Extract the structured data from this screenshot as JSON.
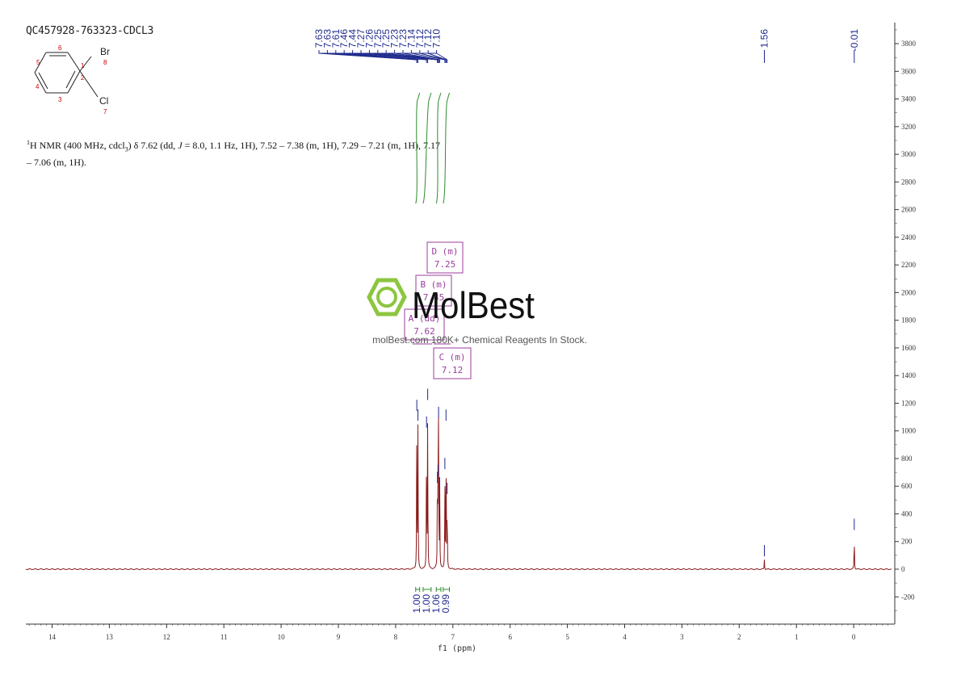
{
  "sample_id": "QC457928-763323-CDCL3",
  "molecule": {
    "substituent_top": "Br",
    "substituent_bottom": "Cl",
    "atom_numbers": [
      "1",
      "2",
      "3",
      "4",
      "5",
      "6",
      "7",
      "8"
    ]
  },
  "nmr_text": {
    "sup": "1",
    "p1": "H NMR (400 MHz, cdcl",
    "sub": "3",
    "p2": ") δ 7.62 (dd, ",
    "j": "J",
    "p3": " = 8.0, 1.1 Hz, 1H), 7.52 – 7.38 (m, 1H), 7.29 – 7.21 (m, 1H), 7.17",
    "line2": "– 7.06 (m, 1H)."
  },
  "watermark": {
    "brand": "MolBest",
    "tagline": "molBest.com  180K+ Chemical Reagents In Stock."
  },
  "colors": {
    "spectrum": "#8b1a1a",
    "peak_label": "#1f2a8c",
    "integral": "#2e8b2e",
    "multiplet": "#9b3d9b",
    "axis": "#333333",
    "atom_number": "#cc0000",
    "watermark_green": "#8cc63f"
  },
  "chart_data": {
    "type": "line",
    "xlabel": "f1 (ppm)",
    "x_reversed": true,
    "xlim": [
      14.5,
      -0.6
    ],
    "ylim": [
      -400,
      3950
    ],
    "x_ticks": [
      14,
      13,
      12,
      11,
      10,
      9,
      8,
      7,
      6,
      5,
      4,
      3,
      2,
      1,
      0
    ],
    "y_ticks": [
      -200,
      0,
      200,
      400,
      600,
      800,
      1000,
      1200,
      1400,
      1600,
      1800,
      2000,
      2200,
      2400,
      2600,
      2800,
      3000,
      3200,
      3400,
      3600,
      3800
    ],
    "peaks": [
      {
        "ppm": 7.63,
        "height": 1120
      },
      {
        "ppm": 7.61,
        "height": 1050
      },
      {
        "ppm": 7.46,
        "height": 1000
      },
      {
        "ppm": 7.44,
        "height": 1200
      },
      {
        "ppm": 7.27,
        "height": 600
      },
      {
        "ppm": 7.26,
        "height": 650
      },
      {
        "ppm": 7.25,
        "height": 1070
      },
      {
        "ppm": 7.23,
        "height": 560
      },
      {
        "ppm": 7.14,
        "height": 700
      },
      {
        "ppm": 7.12,
        "height": 1050
      },
      {
        "ppm": 7.1,
        "height": 520
      },
      {
        "ppm": 1.56,
        "height": 70
      },
      {
        "ppm": -0.01,
        "height": 260
      }
    ],
    "peak_labels": [
      "7.63",
      "7.63",
      "7.61",
      "7.46",
      "7.44",
      "7.27",
      "7.26",
      "7.25",
      "7.25",
      "7.23",
      "7.23",
      "7.14",
      "7.12",
      "7.12",
      "7.10"
    ],
    "isolated_peak_labels": [
      "1.56",
      "-0.01"
    ],
    "integrals": [
      {
        "from": 7.65,
        "to": 7.58,
        "value": "1.00"
      },
      {
        "from": 7.52,
        "to": 7.38,
        "value": "1.00"
      },
      {
        "from": 7.29,
        "to": 7.21,
        "value": "1.06"
      },
      {
        "from": 7.17,
        "to": 7.06,
        "value": "0.99"
      }
    ],
    "multiplets": [
      {
        "name": "D (m)",
        "shift": "7.25"
      },
      {
        "name": "B (m)",
        "shift": "7.45"
      },
      {
        "name": "A (dd)",
        "shift": "7.62"
      },
      {
        "name": "C (m)",
        "shift": "7.12"
      }
    ]
  }
}
